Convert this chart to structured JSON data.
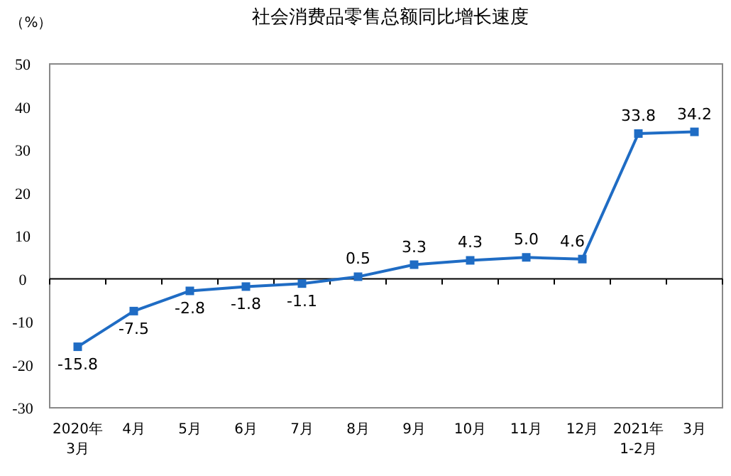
{
  "chart_data": {
    "type": "line",
    "title": "社会消费品零售总额同比增长速度",
    "ylabel": "（%）",
    "categories": [
      "2020年\n3月",
      "4月",
      "5月",
      "6月",
      "7月",
      "8月",
      "9月",
      "10月",
      "11月",
      "12月",
      "2021年\n1-2月",
      "3月"
    ],
    "series": [
      {
        "color": "#1f6cc4",
        "values": [
          -15.8,
          -7.5,
          -2.8,
          -1.8,
          -1.1,
          0.5,
          3.3,
          4.3,
          5.0,
          4.6,
          33.8,
          34.2
        ]
      }
    ],
    "ylim": [
      -30,
      50
    ],
    "yticks": [
      -30,
      -20,
      -10,
      0,
      10,
      20,
      30,
      40,
      50
    ],
    "value_labels": [
      "-15.8",
      "-7.5",
      "-2.8",
      "-1.8",
      "-1.1",
      "0.5",
      "3.3",
      "4.3",
      "5.0",
      "4.6",
      "33.8",
      "34.2"
    ],
    "marker": "square",
    "line_style": "solid"
  }
}
